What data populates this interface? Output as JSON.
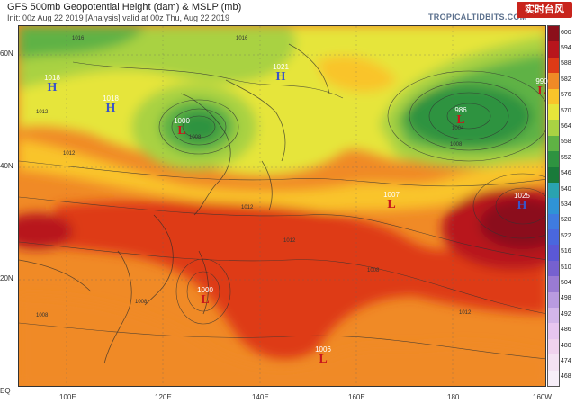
{
  "header": {
    "title": "GFS 500mb Geopotential Height (dam) & MSLP (mb)",
    "subtitle": "Init: 00z Aug 22 2019   [Analysis]   valid at 00z Thu, Aug 22 2019",
    "site": "TROPICALTIDBITS.COM",
    "watermark": "实时台风"
  },
  "axes": {
    "lat_labels": [
      "60N",
      "40N",
      "20N",
      "EQ"
    ],
    "lon_labels": [
      "100E",
      "120E",
      "140E",
      "160E",
      "180",
      "160W"
    ]
  },
  "colorbar": {
    "levels": [
      "600",
      "594",
      "588",
      "582",
      "576",
      "570",
      "564",
      "558",
      "552",
      "546",
      "540",
      "534",
      "528",
      "522",
      "516",
      "510",
      "504",
      "498",
      "492",
      "486",
      "480",
      "474",
      "468"
    ],
    "colors": [
      "#8b0f1a",
      "#b8151c",
      "#de3a16",
      "#f08a26",
      "#f9c42a",
      "#e6e53a",
      "#a9d243",
      "#5fb244",
      "#2e9340",
      "#197a3a",
      "#2aa3b0",
      "#2f93d6",
      "#3f7be0",
      "#4a67de",
      "#5b58d6",
      "#7661cf",
      "#9a7bd3",
      "#b99be0",
      "#d3b6ea",
      "#e7c6f0",
      "#f0d2ee",
      "#f4e2f3",
      "#f7eef8"
    ]
  },
  "systems": [
    {
      "type": "H",
      "pressure": "1018",
      "region": "mongolia"
    },
    {
      "type": "H",
      "pressure": "1018",
      "region": "north-china"
    },
    {
      "type": "L",
      "pressure": "1000",
      "region": "northeast-china"
    },
    {
      "type": "H",
      "pressure": "1021",
      "region": "okhotsk"
    },
    {
      "type": "L",
      "pressure": "986",
      "region": "bering"
    },
    {
      "type": "L",
      "pressure": "990",
      "region": "alaska"
    },
    {
      "type": "L",
      "pressure": "1007",
      "region": "north-pacific"
    },
    {
      "type": "H",
      "pressure": "1025",
      "region": "central-pacific"
    },
    {
      "type": "L",
      "pressure": "1000",
      "region": "philippine-sea"
    },
    {
      "type": "L",
      "pressure": "1006",
      "region": "west-pacific"
    }
  ],
  "contour_labels": [
    "1016",
    "1016",
    "1008",
    "1012",
    "1012",
    "1008",
    "1012",
    "1008",
    "1008",
    "1004",
    "1012",
    "1012",
    "1008"
  ]
}
